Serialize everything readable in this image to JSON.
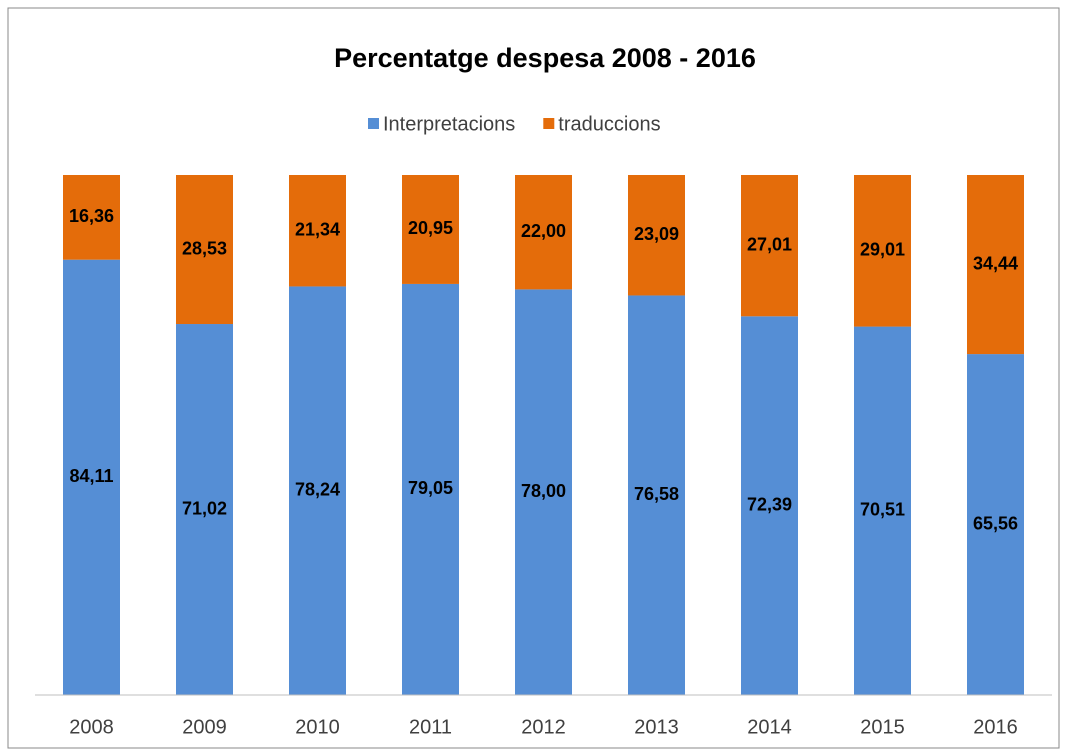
{
  "chart_data": {
    "type": "bar",
    "stacking": "percent",
    "title": "Percentatge despesa 2008 - 2016",
    "categories": [
      "2008",
      "2009",
      "2010",
      "2011",
      "2012",
      "2013",
      "2014",
      "2015",
      "2016"
    ],
    "series": [
      {
        "name": "Interpretacions",
        "color": "#558ed5",
        "values": [
          84.11,
          71.02,
          78.24,
          79.05,
          78.0,
          76.58,
          72.39,
          70.51,
          65.56
        ],
        "value_labels": [
          "84,11",
          "71,02",
          "78,24",
          "79,05",
          "78,00",
          "76,58",
          "72,39",
          "70,51",
          "65,56"
        ]
      },
      {
        "name": "traduccions",
        "color": "#e46c0a",
        "values": [
          16.36,
          28.53,
          21.34,
          20.95,
          22.0,
          23.09,
          27.01,
          29.01,
          34.44
        ],
        "value_labels": [
          "16,36",
          "28,53",
          "21,34",
          "20,95",
          "22,00",
          "23,09",
          "27,01",
          "29,01",
          "34,44"
        ]
      }
    ],
    "ylim": [
      0,
      100
    ],
    "legend": "top"
  }
}
